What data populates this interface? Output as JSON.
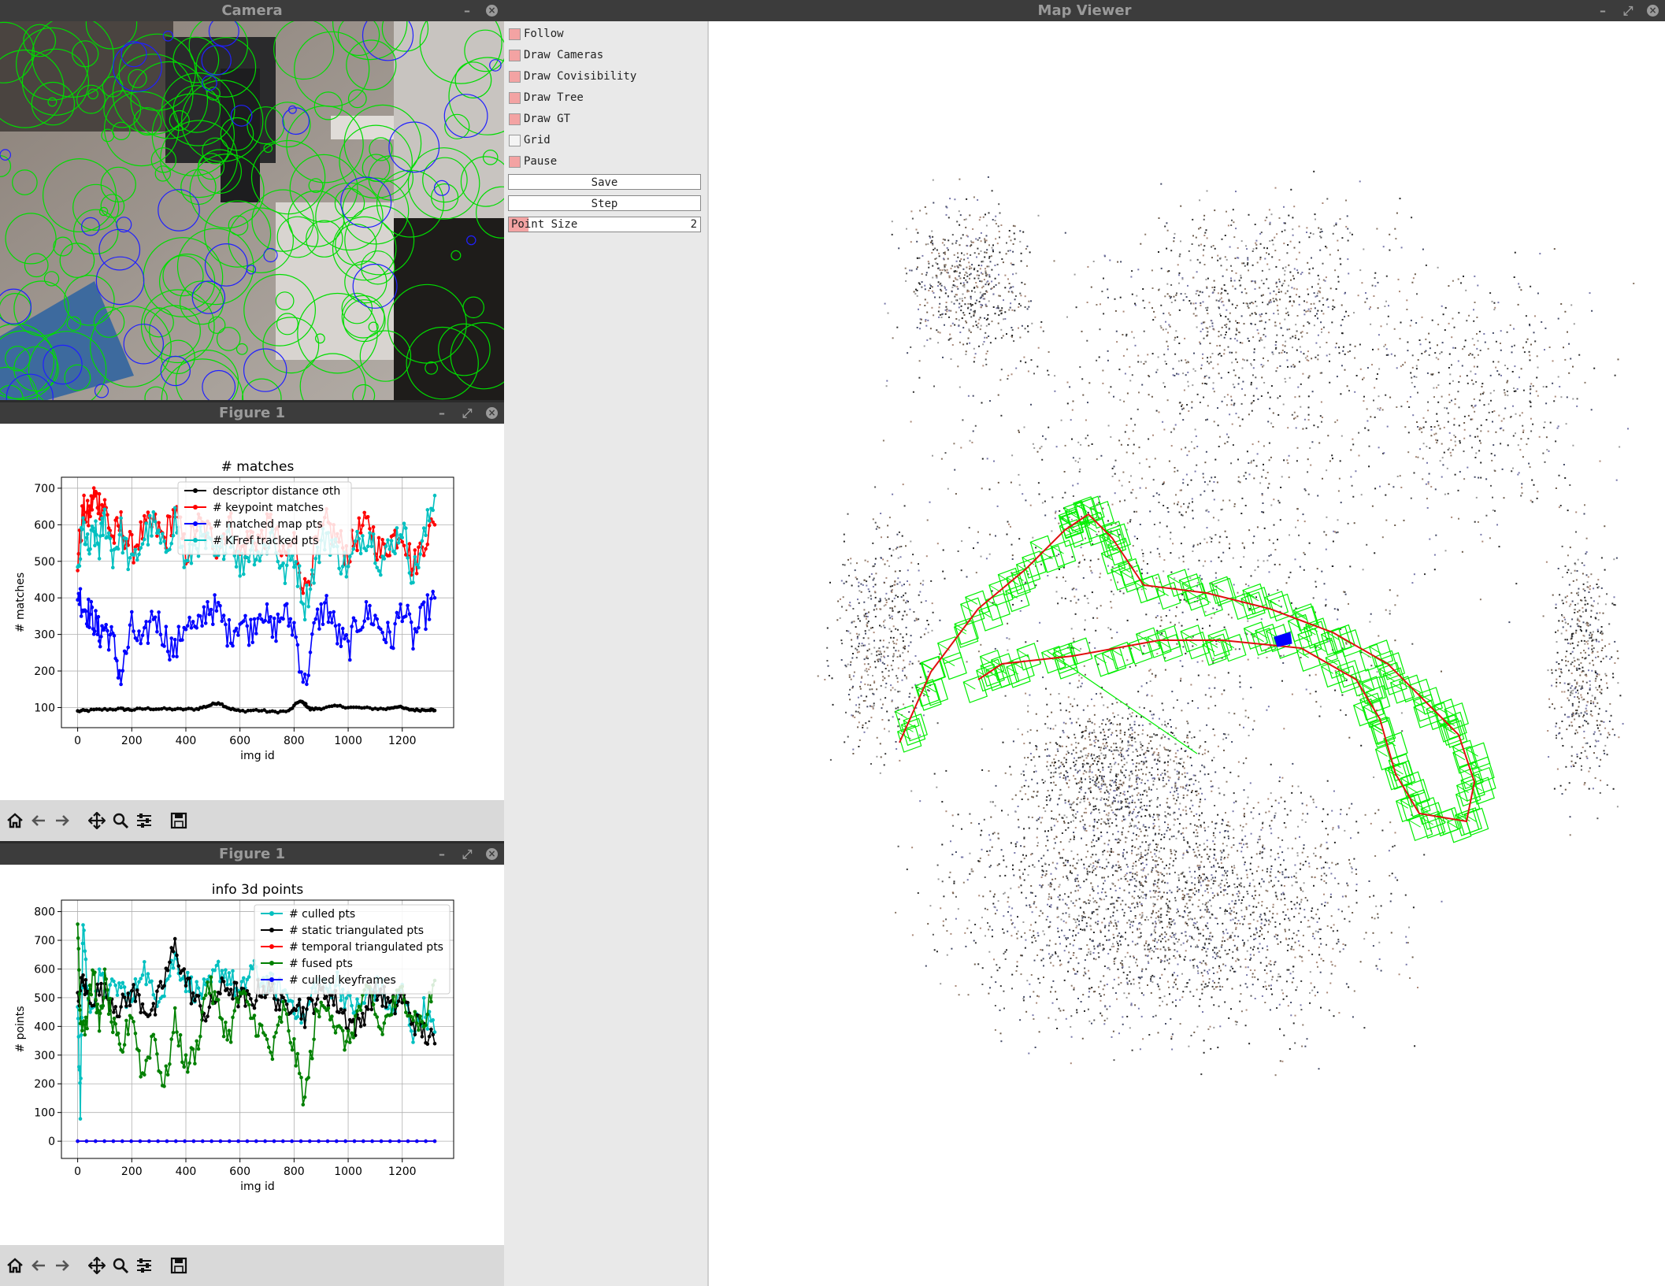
{
  "camera_window": {
    "title": "Camera"
  },
  "figure_top": {
    "title": "Figure 1"
  },
  "figure_bottom": {
    "title": "Figure 1"
  },
  "map_viewer": {
    "title": "Map Viewer",
    "checkboxes": [
      {
        "label": "Follow",
        "checked": true
      },
      {
        "label": "Draw Cameras",
        "checked": true
      },
      {
        "label": "Draw Covisibility",
        "checked": true
      },
      {
        "label": "Draw Tree",
        "checked": true
      },
      {
        "label": "Draw GT",
        "checked": true
      },
      {
        "label": "Grid",
        "checked": false
      },
      {
        "label": "Pause",
        "checked": true
      }
    ],
    "save_label": "Save",
    "step_label": "Step",
    "point_size_label": "Point Size",
    "point_size_value": "2"
  },
  "toolbar_icons": [
    "home-icon",
    "back-icon",
    "forward-icon",
    "pan-icon",
    "zoom-icon",
    "configure-icon",
    "save-icon"
  ],
  "chart_data": [
    {
      "type": "line",
      "title": "# matches",
      "xlabel": "img id",
      "ylabel": "# matches",
      "xlim": [
        -60,
        1390
      ],
      "ylim": [
        45,
        730
      ],
      "xticks": [
        0,
        200,
        400,
        600,
        800,
        1000,
        1200
      ],
      "yticks": [
        100,
        200,
        300,
        400,
        500,
        600,
        700
      ],
      "grid": true,
      "legend": "top-center",
      "series": [
        {
          "name": "descriptor distance σth",
          "color": "#000000",
          "x": [
            0,
            40,
            100,
            160,
            200,
            260,
            320,
            380,
            440,
            480,
            520,
            560,
            600,
            660,
            720,
            780,
            820,
            840,
            860,
            900,
            960,
            1020,
            1080,
            1140,
            1180,
            1220,
            1260,
            1300,
            1320
          ],
          "values": [
            90,
            92,
            95,
            96,
            94,
            97,
            96,
            95,
            96,
            104,
            114,
            98,
            90,
            93,
            88,
            90,
            118,
            110,
            95,
            98,
            104,
            100,
            98,
            96,
            103,
            95,
            93,
            95,
            92
          ]
        },
        {
          "name": "# keypoint matches",
          "color": "#ff0000",
          "x": [
            0,
            20,
            40,
            60,
            80,
            100,
            130,
            160,
            200,
            240,
            280,
            320,
            360,
            400,
            440,
            480,
            520,
            560,
            600,
            640,
            680,
            720,
            760,
            800,
            840,
            880,
            920,
            960,
            1000,
            1040,
            1080,
            1120,
            1160,
            1200,
            1240,
            1280,
            1320
          ],
          "values": [
            500,
            640,
            620,
            680,
            660,
            650,
            560,
            600,
            530,
            580,
            600,
            560,
            640,
            520,
            600,
            580,
            540,
            610,
            520,
            570,
            560,
            610,
            500,
            560,
            420,
            540,
            600,
            560,
            520,
            580,
            600,
            520,
            560,
            590,
            480,
            560,
            600
          ]
        },
        {
          "name": "# matched map pts",
          "color": "#0000ff",
          "x": [
            0,
            20,
            40,
            60,
            80,
            100,
            130,
            160,
            200,
            240,
            280,
            320,
            360,
            400,
            440,
            480,
            520,
            560,
            600,
            640,
            680,
            720,
            760,
            800,
            840,
            880,
            920,
            960,
            1000,
            1040,
            1080,
            1120,
            1160,
            1200,
            1240,
            1280,
            1320
          ],
          "values": [
            420,
            380,
            360,
            340,
            300,
            320,
            280,
            180,
            320,
            260,
            360,
            300,
            250,
            340,
            300,
            380,
            360,
            300,
            340,
            310,
            380,
            300,
            360,
            320,
            160,
            330,
            380,
            300,
            260,
            340,
            360,
            320,
            280,
            380,
            290,
            350,
            400
          ]
        },
        {
          "name": "# KFref tracked pts",
          "color": "#00c0c0",
          "x": [
            0,
            20,
            40,
            60,
            80,
            100,
            130,
            160,
            200,
            240,
            280,
            320,
            360,
            400,
            440,
            480,
            520,
            560,
            600,
            640,
            680,
            720,
            760,
            800,
            840,
            880,
            920,
            960,
            1000,
            1040,
            1080,
            1120,
            1160,
            1200,
            1240,
            1280,
            1320
          ],
          "values": [
            450,
            600,
            520,
            580,
            540,
            620,
            520,
            580,
            480,
            560,
            600,
            520,
            620,
            480,
            560,
            540,
            500,
            600,
            480,
            540,
            520,
            580,
            460,
            520,
            380,
            500,
            580,
            520,
            480,
            560,
            580,
            500,
            540,
            600,
            460,
            560,
            680
          ]
        }
      ]
    },
    {
      "type": "line",
      "title": "info 3d points",
      "xlabel": "img id",
      "ylabel": "# points",
      "xlim": [
        -60,
        1390
      ],
      "ylim": [
        -60,
        840
      ],
      "xticks": [
        0,
        200,
        400,
        600,
        800,
        1000,
        1200
      ],
      "yticks": [
        0,
        100,
        200,
        300,
        400,
        500,
        600,
        700,
        800
      ],
      "grid": true,
      "legend": "top-right",
      "series": [
        {
          "name": "# culled pts",
          "color": "#00c0c0",
          "x": [
            0,
            10,
            20,
            40,
            80,
            120,
            160,
            200,
            240,
            280,
            320,
            360,
            400,
            440,
            480,
            520,
            560,
            600,
            640,
            680,
            720,
            760,
            800,
            840,
            880,
            920,
            960,
            1000,
            1040,
            1080,
            1120,
            1160,
            1200,
            1240,
            1280,
            1320
          ],
          "values": [
            500,
            100,
            780,
            460,
            560,
            520,
            540,
            480,
            620,
            500,
            540,
            640,
            560,
            520,
            520,
            600,
            580,
            500,
            600,
            560,
            540,
            520,
            480,
            420,
            560,
            520,
            560,
            480,
            460,
            520,
            540,
            440,
            520,
            380,
            460,
            380
          ]
        },
        {
          "name": "# static triangulated pts",
          "color": "#000000",
          "x": [
            0,
            20,
            40,
            80,
            120,
            160,
            200,
            240,
            280,
            320,
            360,
            400,
            440,
            480,
            520,
            560,
            600,
            640,
            680,
            720,
            760,
            800,
            840,
            880,
            920,
            960,
            1000,
            1040,
            1080,
            1120,
            1160,
            1200,
            1240,
            1280,
            1320
          ],
          "values": [
            480,
            560,
            500,
            520,
            500,
            460,
            520,
            480,
            440,
            560,
            680,
            560,
            480,
            440,
            520,
            540,
            500,
            480,
            540,
            520,
            460,
            500,
            440,
            500,
            520,
            480,
            420,
            400,
            500,
            520,
            460,
            500,
            420,
            380,
            340
          ]
        },
        {
          "name": "# temporal triangulated pts",
          "color": "#ff0000",
          "x": [
            0,
            1320
          ],
          "values": [
            0,
            0
          ]
        },
        {
          "name": "# fused pts",
          "color": "#008000",
          "x": [
            0,
            10,
            30,
            60,
            80,
            100,
            130,
            160,
            200,
            240,
            280,
            320,
            360,
            400,
            440,
            480,
            520,
            560,
            600,
            640,
            680,
            720,
            760,
            800,
            840,
            880,
            920,
            960,
            1000,
            1040,
            1080,
            1120,
            1160,
            1200,
            1240,
            1280,
            1320
          ],
          "values": [
            800,
            420,
            400,
            600,
            380,
            560,
            400,
            300,
            460,
            220,
            380,
            180,
            420,
            260,
            320,
            560,
            460,
            360,
            520,
            440,
            380,
            300,
            460,
            320,
            140,
            420,
            500,
            380,
            340,
            460,
            520,
            380,
            460,
            520,
            440,
            400,
            560
          ]
        },
        {
          "name": "# culled keyframes",
          "color": "#0000ff",
          "x": [
            0,
            1320
          ],
          "values": [
            0,
            0
          ]
        }
      ]
    }
  ],
  "colors": {
    "title_bar": "#3c3c3c",
    "title_text": "#9a9a9a",
    "toggle_on": "#f3a3a3",
    "trajectory_green": "#00ee00",
    "trajectory_red": "#e01010"
  }
}
